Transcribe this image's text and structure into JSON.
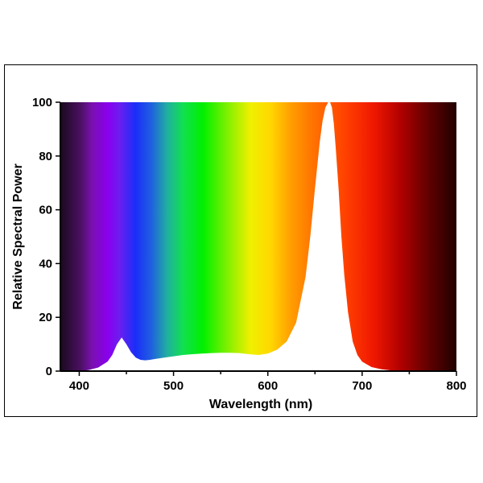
{
  "chart_data": {
    "type": "area",
    "title": "",
    "xlabel": "Wavelength (nm)",
    "ylabel": "Relative Spectral Power",
    "xlim": [
      380,
      800
    ],
    "ylim": [
      0,
      100
    ],
    "x_ticks": [
      400,
      500,
      600,
      700,
      800
    ],
    "y_ticks": [
      0,
      20,
      40,
      60,
      80,
      100
    ],
    "grid": false,
    "legend": "none",
    "background": "visible-spectrum gradient (violet to deep red)",
    "fill_color": "#ffffff",
    "series": [
      {
        "x": [
          380,
          390,
          400,
          410,
          420,
          430,
          435,
          440,
          445,
          450,
          455,
          460,
          465,
          470,
          475,
          480,
          490,
          500,
          510,
          520,
          530,
          540,
          550,
          560,
          570,
          580,
          590,
          600,
          610,
          620,
          630,
          640,
          645,
          650,
          655,
          658,
          661,
          664,
          666,
          668,
          670,
          672,
          675,
          678,
          681,
          685,
          690,
          695,
          700,
          710,
          720,
          730,
          740,
          750,
          760,
          780,
          800
        ],
        "y": [
          0,
          0,
          0,
          0.4,
          1.3,
          3.5,
          6,
          10,
          12.5,
          10,
          7,
          5,
          4.2,
          4,
          4.2,
          4.5,
          5,
          5.5,
          6,
          6.3,
          6.5,
          6.7,
          6.8,
          6.8,
          6.7,
          6.3,
          6,
          6.5,
          8,
          11,
          18,
          35,
          50,
          68,
          85,
          93,
          98,
          100,
          100,
          98,
          92,
          83,
          68,
          50,
          36,
          22,
          11,
          6,
          3.5,
          1.5,
          0.7,
          0.3,
          0.1,
          0,
          0,
          0,
          0
        ]
      }
    ]
  }
}
